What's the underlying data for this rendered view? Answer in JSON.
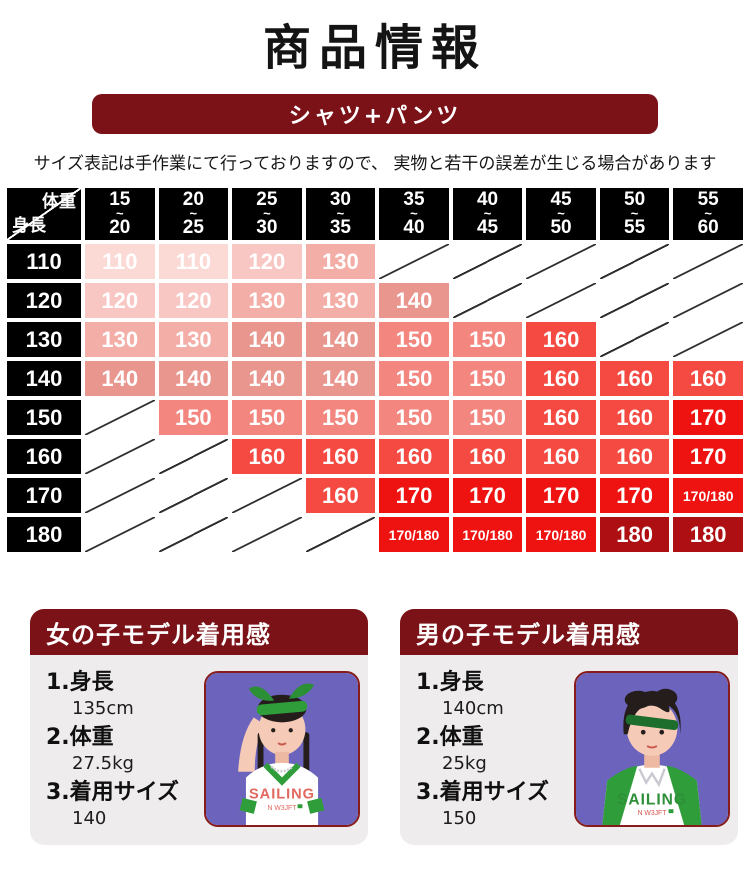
{
  "header": {
    "title": "商品情報",
    "banner_label": "シャツ+パンツ",
    "note": "サイズ表記は手作業にて行っておりますので、 実物と若干の誤差が生じる場合があります"
  },
  "table": {
    "corner": {
      "top_right": "体重",
      "bottom_left": "身長"
    },
    "tilde": "~",
    "columns": [
      {
        "from": "15",
        "to": "20"
      },
      {
        "from": "20",
        "to": "25"
      },
      {
        "from": "25",
        "to": "30"
      },
      {
        "from": "30",
        "to": "35"
      },
      {
        "from": "35",
        "to": "40"
      },
      {
        "from": "40",
        "to": "45"
      },
      {
        "from": "45",
        "to": "50"
      },
      {
        "from": "50",
        "to": "55"
      },
      {
        "from": "55",
        "to": "60"
      }
    ],
    "rows": [
      {
        "label": "110",
        "cells": [
          "110",
          "110",
          "120",
          "130",
          "",
          "",
          "",
          "",
          ""
        ]
      },
      {
        "label": "120",
        "cells": [
          "120",
          "120",
          "130",
          "130",
          "140",
          "",
          "",
          "",
          ""
        ]
      },
      {
        "label": "130",
        "cells": [
          "130",
          "130",
          "140",
          "140",
          "150",
          "150",
          "160",
          "",
          ""
        ]
      },
      {
        "label": "140",
        "cells": [
          "140",
          "140",
          "140",
          "140",
          "150",
          "150",
          "160",
          "160",
          "160"
        ]
      },
      {
        "label": "150",
        "cells": [
          "",
          "150",
          "150",
          "150",
          "150",
          "150",
          "160",
          "160",
          "170"
        ]
      },
      {
        "label": "160",
        "cells": [
          "",
          "",
          "160",
          "160",
          "160",
          "160",
          "160",
          "160",
          "170"
        ]
      },
      {
        "label": "170",
        "cells": [
          "",
          "",
          "",
          "160",
          "170",
          "170",
          "170",
          "170",
          "170/180"
        ]
      },
      {
        "label": "180",
        "cells": [
          "",
          "",
          "",
          "",
          "170/180",
          "170/180",
          "170/180",
          "180",
          "180"
        ]
      }
    ],
    "value_colors": {
      "110": "#fbdad6",
      "120": "#f8c7c3",
      "130": "#f4aea8",
      "140": "#e9968f",
      "150": "#f3867f",
      "160": "#f54a42",
      "170": "#ee1310",
      "170/180": "#ee1310",
      "180": "#ae0f13"
    }
  },
  "models": [
    {
      "title": "女の子モデル着用感",
      "items": [
        {
          "label": "1.身長",
          "value": "135cm"
        },
        {
          "label": "2.体重",
          "value": "27.5kg"
        },
        {
          "label": "3.着用サイズ",
          "value": "140"
        }
      ],
      "photo": {
        "shirt_text": "SAILING",
        "shirt_subtext": "N W3JFT"
      }
    },
    {
      "title": "男の子モデル着用感",
      "items": [
        {
          "label": "1.身長",
          "value": "140cm"
        },
        {
          "label": "2.体重",
          "value": "25kg"
        },
        {
          "label": "3.着用サイズ",
          "value": "150"
        }
      ],
      "photo": {
        "shirt_text": "SAILING",
        "shirt_subtext": "N W3JFT"
      }
    }
  ],
  "colors": {
    "maroon": "#7b1217",
    "card_bg": "#eeecec",
    "diag": "#2f2f2f",
    "photo_bg": "#6c64bc",
    "green": "#2f9e3a",
    "dark_green": "#1d6e2c",
    "skin": "#f5cab6",
    "hair": "#241d1c",
    "girl_text": "#e2685e",
    "boy_text": "#2f8f38"
  }
}
